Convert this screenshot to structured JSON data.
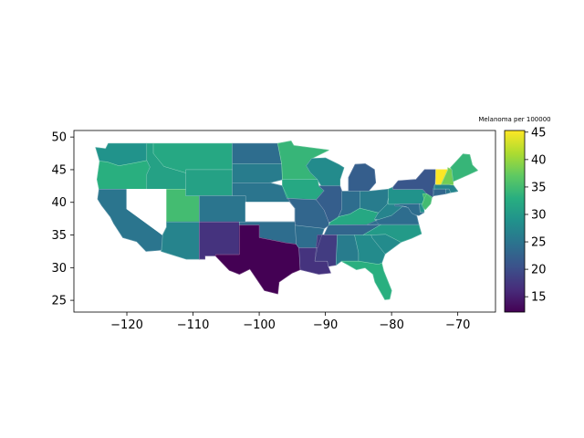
{
  "chart_data": {
    "type": "choropleth",
    "title": "",
    "colorbar_label": "Melanoma per 100000",
    "colormap": "viridis",
    "value_range": [
      12.2,
      45.3
    ],
    "xlim": [
      -128,
      -64.3
    ],
    "ylim": [
      23.2,
      51.0
    ],
    "x_ticks": [
      -120,
      -110,
      -100,
      -90,
      -80,
      -70
    ],
    "x_tick_labels": [
      "−120",
      "−110",
      "−100",
      "−90",
      "−80",
      "−70"
    ],
    "y_ticks": [
      25,
      30,
      35,
      40,
      45,
      50
    ],
    "y_tick_labels": [
      "25",
      "30",
      "35",
      "40",
      "45",
      "50"
    ],
    "colorbar_ticks": [
      15,
      20,
      25,
      30,
      35,
      40,
      45
    ],
    "missing_data_states": [
      "Nevada",
      "Kansas"
    ],
    "states": [
      {
        "name": "Washington",
        "value": 29
      },
      {
        "name": "Oregon",
        "value": 33
      },
      {
        "name": "California",
        "value": 25
      },
      {
        "name": "Idaho",
        "value": 31
      },
      {
        "name": "Nevada",
        "value": null
      },
      {
        "name": "Utah",
        "value": 35
      },
      {
        "name": "Arizona",
        "value": 27
      },
      {
        "name": "Montana",
        "value": 32
      },
      {
        "name": "Wyoming",
        "value": 31
      },
      {
        "name": "Colorado",
        "value": 25
      },
      {
        "name": "New Mexico",
        "value": 17
      },
      {
        "name": "North Dakota",
        "value": 24
      },
      {
        "name": "South Dakota",
        "value": 26
      },
      {
        "name": "Nebraska",
        "value": 25
      },
      {
        "name": "Kansas",
        "value": null
      },
      {
        "name": "Oklahoma",
        "value": 24
      },
      {
        "name": "Texas",
        "value": 12.2
      },
      {
        "name": "Minnesota",
        "value": 34
      },
      {
        "name": "Iowa",
        "value": 32
      },
      {
        "name": "Missouri",
        "value": 23
      },
      {
        "name": "Arkansas",
        "value": 24
      },
      {
        "name": "Louisiana",
        "value": 17
      },
      {
        "name": "Wisconsin",
        "value": 28
      },
      {
        "name": "Illinois",
        "value": 22
      },
      {
        "name": "Michigan",
        "value": 22
      },
      {
        "name": "Indiana",
        "value": 24
      },
      {
        "name": "Ohio",
        "value": 26
      },
      {
        "name": "Kentucky",
        "value": 32
      },
      {
        "name": "Tennessee",
        "value": 23
      },
      {
        "name": "Mississippi",
        "value": 18
      },
      {
        "name": "Alabama",
        "value": 26
      },
      {
        "name": "Georgia",
        "value": 28
      },
      {
        "name": "Florida",
        "value": 33
      },
      {
        "name": "South Carolina",
        "value": 28
      },
      {
        "name": "North Carolina",
        "value": 30
      },
      {
        "name": "Virginia",
        "value": 24
      },
      {
        "name": "West Virginia",
        "value": 27
      },
      {
        "name": "Pennsylvania",
        "value": 29
      },
      {
        "name": "New York",
        "value": 21
      },
      {
        "name": "New Jersey",
        "value": 35
      },
      {
        "name": "Delaware",
        "value": 29
      },
      {
        "name": "Maryland",
        "value": 24
      },
      {
        "name": "Connecticut",
        "value": 23
      },
      {
        "name": "Rhode Island",
        "value": 25
      },
      {
        "name": "Massachusetts",
        "value": 27
      },
      {
        "name": "Vermont",
        "value": 45.3
      },
      {
        "name": "New Hampshire",
        "value": 38
      },
      {
        "name": "Maine",
        "value": 34
      }
    ]
  }
}
